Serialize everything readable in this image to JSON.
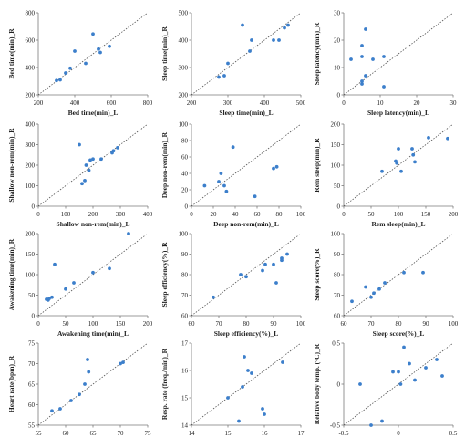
{
  "style": {
    "point_color": "#3c7fcb",
    "axis_color": "#7a7a7a",
    "diag_color": "#555555"
  },
  "chart_data": [
    {
      "type": "scatter",
      "xlabel": "Bed time(min)_L",
      "ylabel": "Bed time(min)_R",
      "xlim": [
        200,
        800
      ],
      "ylim": [
        200,
        800
      ],
      "xticks": [
        "200",
        "400",
        "600",
        "800"
      ],
      "yticks": [
        "200",
        "400",
        "600",
        "800"
      ],
      "x": [
        300,
        320,
        350,
        375,
        400,
        460,
        500,
        530,
        540,
        590
      ],
      "y": [
        305,
        310,
        360,
        395,
        520,
        430,
        645,
        535,
        510,
        555
      ]
    },
    {
      "type": "scatter",
      "xlabel": "Sleep time(min)_L",
      "ylabel": "Sleep time(min)_R",
      "xlim": [
        200,
        500
      ],
      "ylim": [
        200,
        500
      ],
      "xticks": [
        "200",
        "300",
        "400",
        "500"
      ],
      "yticks": [
        "200",
        "300",
        "400",
        "500"
      ],
      "x": [
        275,
        290,
        300,
        340,
        360,
        365,
        425,
        440,
        455,
        465
      ],
      "y": [
        265,
        270,
        315,
        455,
        360,
        400,
        400,
        400,
        445,
        455
      ]
    },
    {
      "type": "scatter",
      "xlabel": "Sleep latency(min)_L",
      "ylabel": "Sleep latency(min)_R",
      "xlim": [
        0,
        30
      ],
      "ylim": [
        0,
        30
      ],
      "xticks": [
        "0",
        "10",
        "20",
        "30"
      ],
      "yticks": [
        "0",
        "10",
        "20",
        "30"
      ],
      "x": [
        2,
        5,
        5,
        5,
        5,
        6,
        6,
        8,
        11,
        11
      ],
      "y": [
        13,
        18,
        14,
        5,
        4,
        7,
        24,
        13,
        14,
        3
      ]
    },
    {
      "type": "scatter",
      "xlabel": "Shallow non-rem(min)_L",
      "ylabel": "Shallow non-rem(min)_R",
      "xlim": [
        0,
        400
      ],
      "ylim": [
        0,
        400
      ],
      "xticks": [
        "0",
        "100",
        "200",
        "300",
        "400"
      ],
      "yticks": [
        "0",
        "100",
        "200",
        "300",
        "400"
      ],
      "x": [
        150,
        160,
        170,
        175,
        185,
        190,
        200,
        230,
        270,
        275,
        290
      ],
      "y": [
        300,
        110,
        125,
        200,
        175,
        225,
        230,
        230,
        260,
        270,
        285
      ]
    },
    {
      "type": "scatter",
      "xlabel": "Deep non-rem(min)_L",
      "ylabel": "Deep non-rem(min)_R",
      "xlim": [
        0,
        100
      ],
      "ylim": [
        0,
        100
      ],
      "xticks": [
        "0",
        "20",
        "40",
        "60",
        "80",
        "100"
      ],
      "yticks": [
        "0",
        "20",
        "40",
        "60",
        "80",
        "100"
      ],
      "x": [
        12,
        25,
        27,
        30,
        32,
        38,
        58,
        75,
        78
      ],
      "y": [
        25,
        30,
        40,
        25,
        18,
        72,
        12,
        46,
        48
      ]
    },
    {
      "type": "scatter",
      "xlabel": "Rem sleep(min)_L",
      "ylabel": "Rem sleep(min)_R",
      "xlim": [
        0,
        200
      ],
      "ylim": [
        0,
        200
      ],
      "xticks": [
        "0",
        "50",
        "100",
        "150",
        "200"
      ],
      "yticks": [
        "0",
        "50",
        "100",
        "150",
        "200"
      ],
      "x": [
        70,
        95,
        97,
        100,
        105,
        125,
        127,
        130,
        155,
        190
      ],
      "y": [
        85,
        110,
        105,
        140,
        85,
        140,
        125,
        108,
        167,
        165
      ]
    },
    {
      "type": "scatter",
      "xlabel": "Awakening time(min)_L",
      "ylabel": "Awakening time(min)_R",
      "xlim": [
        0,
        200
      ],
      "ylim": [
        0,
        200
      ],
      "xticks": [
        "0",
        "50",
        "100",
        "150",
        "200"
      ],
      "yticks": [
        "0",
        "50",
        "100",
        "150",
        "200"
      ],
      "x": [
        15,
        18,
        20,
        25,
        30,
        50,
        65,
        100,
        130,
        165
      ],
      "y": [
        40,
        38,
        42,
        45,
        125,
        65,
        80,
        105,
        115,
        200
      ]
    },
    {
      "type": "scatter",
      "xlabel": "Sleep efficiency(%)_L",
      "ylabel": "Sleep efficiency(%)_R",
      "xlim": [
        60,
        100
      ],
      "ylim": [
        60,
        100
      ],
      "xticks": [
        "60",
        "70",
        "80",
        "90",
        "100"
      ],
      "yticks": [
        "60",
        "70",
        "80",
        "90",
        "100"
      ],
      "x": [
        68,
        78,
        80,
        86,
        87,
        90,
        91,
        93,
        93,
        95
      ],
      "y": [
        69,
        80,
        79,
        82,
        85,
        85,
        76,
        87,
        88,
        90
      ]
    },
    {
      "type": "scatter",
      "xlabel": "Sleep score(%)_L",
      "ylabel": "Sleep score(%)_R",
      "xlim": [
        60,
        100
      ],
      "ylim": [
        60,
        100
      ],
      "xticks": [
        "60",
        "70",
        "80",
        "90",
        "100"
      ],
      "yticks": [
        "60",
        "70",
        "80",
        "90",
        "100"
      ],
      "x": [
        63,
        68,
        70,
        71,
        73,
        75,
        82,
        89
      ],
      "y": [
        67,
        74,
        69,
        71,
        73,
        76,
        81,
        81
      ]
    },
    {
      "type": "scatter",
      "xlabel": "Heart rate(bpm)_L",
      "ylabel": "Heart rate(bpm)_R",
      "xlim": [
        55,
        75
      ],
      "ylim": [
        55,
        75
      ],
      "xticks": [
        "55",
        "60",
        "65",
        "70",
        "75"
      ],
      "yticks": [
        "55",
        "60",
        "65",
        "70",
        "75"
      ],
      "x": [
        57.5,
        59,
        61,
        62.5,
        63.5,
        64,
        64.2,
        70,
        70.5
      ],
      "y": [
        58.5,
        59,
        61,
        62.5,
        65,
        71,
        68,
        70,
        70.3
      ]
    },
    {
      "type": "scatter",
      "xlabel": "Resp. rate (freq./min)_L",
      "ylabel": "Resp. rate (freq./min)_R",
      "xlim": [
        14,
        17
      ],
      "ylim": [
        14,
        17
      ],
      "xticks": [
        "14",
        "15",
        "16",
        "17"
      ],
      "yticks": [
        "14",
        "15",
        "16",
        "17"
      ],
      "x": [
        15.0,
        15.3,
        15.4,
        15.45,
        15.55,
        15.65,
        15.95,
        16.0,
        16.5
      ],
      "y": [
        15.0,
        14.15,
        15.4,
        16.5,
        16.0,
        15.9,
        14.6,
        14.4,
        16.3
      ]
    },
    {
      "type": "scatter",
      "xlabel": "Relative body temp. (°C)_L",
      "ylabel": "Relative body temp. (°C)_R",
      "xlim": [
        -0.5,
        0.5
      ],
      "ylim": [
        -0.5,
        0.5
      ],
      "xticks": [
        "-0.5",
        "0",
        "0.5"
      ],
      "yticks": [
        "-0.5",
        "0",
        "0.5"
      ],
      "x": [
        -0.35,
        -0.25,
        -0.15,
        -0.05,
        0.0,
        0.02,
        0.05,
        0.1,
        0.15,
        0.25,
        0.35,
        0.4
      ],
      "y": [
        0.0,
        -0.5,
        -0.45,
        0.15,
        0.15,
        0.0,
        0.45,
        0.25,
        0.05,
        0.2,
        0.3,
        0.1
      ]
    }
  ]
}
